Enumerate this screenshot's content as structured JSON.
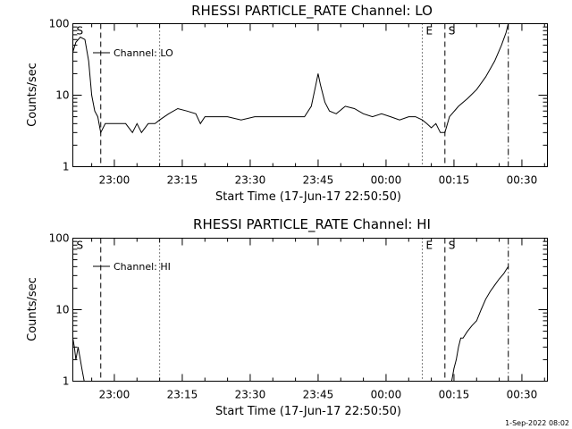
{
  "footer": "1-Sep-2022 08:02",
  "chart_data": [
    {
      "type": "line",
      "title": "RHESSI PARTICLE_RATE Channel: LO",
      "xlabel": "Start Time (17-Jun-17 22:50:50)",
      "ylabel": "Counts/sec",
      "yscale": "log",
      "ylim": [
        1,
        100
      ],
      "y_ticks": [
        "1",
        "10",
        "100"
      ],
      "x_ticks": [
        "23:00",
        "23:15",
        "23:30",
        "23:45",
        "00:00",
        "00:15",
        "00:30"
      ],
      "legend": "Channel: LO",
      "markers": [
        {
          "label": "S",
          "time": "22:50:50",
          "style": "solid"
        },
        {
          "label": "",
          "time": "22:57:00",
          "style": "dashed"
        },
        {
          "label": "",
          "time": "23:10:00",
          "style": "dotted"
        },
        {
          "label": "E",
          "time": "00:08:00",
          "style": "dotted"
        },
        {
          "label": "S",
          "time": "00:13:00",
          "style": "dashed"
        },
        {
          "label": "",
          "time": "00:27:00",
          "style": "dashdot"
        }
      ],
      "series": [
        {
          "name": "Channel: LO",
          "x": [
            "22:50:50",
            "22:51:30",
            "22:52:30",
            "22:53:30",
            "22:54:20",
            "22:55:00",
            "22:55:40",
            "22:56:20",
            "22:57:00",
            "22:58:00",
            "22:59:30",
            "23:01:00",
            "23:02:30",
            "23:04:00",
            "23:05:00",
            "23:06:00",
            "23:07:30",
            "23:09:00",
            "23:10:00",
            "23:12:00",
            "23:14:00",
            "23:16:00",
            "23:18:00",
            "23:19:00",
            "23:20:00",
            "23:22:00",
            "23:25:00",
            "23:28:00",
            "23:31:00",
            "23:34:00",
            "23:37:00",
            "23:40:00",
            "23:42:00",
            "23:43:30",
            "23:44:30",
            "23:45:00",
            "23:45:30",
            "23:46:30",
            "23:47:30",
            "23:49:00",
            "23:51:00",
            "23:53:00",
            "23:55:00",
            "23:57:00",
            "23:59:00",
            "00:01:00",
            "00:03:00",
            "00:05:00",
            "00:06:30",
            "00:08:00",
            "00:09:00",
            "00:10:00",
            "00:11:00",
            "00:12:00",
            "00:13:00",
            "00:14:00",
            "00:16:00",
            "00:18:00",
            "00:20:00",
            "00:22:00",
            "00:24:00",
            "00:25:30",
            "00:26:30",
            "00:27:00"
          ],
          "y": [
            40,
            55,
            65,
            60,
            30,
            10,
            6,
            5,
            3,
            4,
            4,
            4,
            4,
            3,
            4,
            3,
            4,
            4,
            4.5,
            5.5,
            6.5,
            6,
            5.5,
            4,
            5,
            5,
            5,
            4.5,
            5,
            5,
            5,
            5,
            5,
            7,
            14,
            20,
            14,
            8,
            6,
            5.5,
            7,
            6.5,
            5.5,
            5,
            5.5,
            5,
            4.5,
            5,
            5,
            4.5,
            4,
            3.5,
            4,
            3,
            3,
            5,
            7,
            9,
            12,
            18,
            30,
            50,
            75,
            100
          ]
        }
      ]
    },
    {
      "type": "line",
      "title": "RHESSI PARTICLE_RATE Channel: HI",
      "xlabel": "Start Time (17-Jun-17 22:50:50)",
      "ylabel": "Counts/sec",
      "yscale": "log",
      "ylim": [
        1,
        100
      ],
      "y_ticks": [
        "1",
        "10",
        "100"
      ],
      "x_ticks": [
        "23:00",
        "23:15",
        "23:30",
        "23:45",
        "00:00",
        "00:15",
        "00:30"
      ],
      "legend": "Channel: HI",
      "markers": [
        {
          "label": "S",
          "time": "22:50:50",
          "style": "solid"
        },
        {
          "label": "",
          "time": "22:57:00",
          "style": "dashed"
        },
        {
          "label": "",
          "time": "23:10:00",
          "style": "dotted"
        },
        {
          "label": "E",
          "time": "00:08:00",
          "style": "dotted"
        },
        {
          "label": "S",
          "time": "00:13:00",
          "style": "dashed"
        },
        {
          "label": "",
          "time": "00:27:00",
          "style": "dashdot"
        }
      ],
      "series": [
        {
          "name": "Channel: HI",
          "x": [
            "22:50:50",
            "22:51:10",
            "22:51:30",
            "22:52:00",
            "22:52:30",
            "22:52:50",
            "22:53:20",
            "00:14:30",
            "00:15:00",
            "00:15:30",
            "00:16:00",
            "00:16:30",
            "00:17:00",
            "00:18:00",
            "00:19:00",
            "00:20:00",
            "00:21:00",
            "00:22:00",
            "00:23:00",
            "00:24:00",
            "00:25:00",
            "00:26:00",
            "00:26:30",
            "00:27:00"
          ],
          "y": [
            4,
            3,
            2,
            3,
            2,
            1.5,
            1,
            1,
            1.5,
            2,
            3,
            4,
            4,
            5,
            6,
            7,
            10,
            14,
            18,
            22,
            27,
            32,
            36,
            40
          ]
        }
      ]
    }
  ]
}
